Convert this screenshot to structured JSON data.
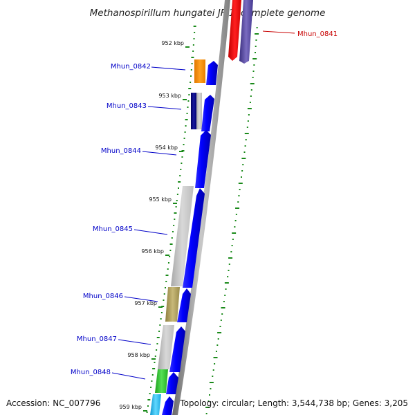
{
  "title": "Methanospirillum hungatei JF-1, complete genome",
  "footer": {
    "accession": "Accession: NC_007796",
    "topology": "Topology: circular; Length: 3,544,738 bp; Genes: 3,205"
  },
  "colors": {
    "reverse_gene": "#ee0000",
    "reverse_cds": "#5a4fa0",
    "forward_cds": "#0000ff",
    "backbone": "#999999",
    "gc_ticks": "#1a8a1a",
    "label_blue": "#0000c8",
    "label_red": "#c80000"
  },
  "ticks": [
    {
      "label": "952 kbp",
      "kbp": 952
    },
    {
      "label": "953 kbp",
      "kbp": 953
    },
    {
      "label": "954 kbp",
      "kbp": 954
    },
    {
      "label": "955 kbp",
      "kbp": 955
    },
    {
      "label": "956 kbp",
      "kbp": 956
    },
    {
      "label": "957 kbp",
      "kbp": 957
    },
    {
      "label": "958 kbp",
      "kbp": 958
    },
    {
      "label": "959 kbp",
      "kbp": 959
    }
  ],
  "genes": [
    {
      "name": "Mhun_0841",
      "strand": "reverse",
      "label_color": "red"
    },
    {
      "name": "Mhun_0842",
      "strand": "forward",
      "label_color": "blue",
      "color": "#f08c00"
    },
    {
      "name": "Mhun_0843",
      "strand": "forward",
      "label_color": "blue",
      "color": "#000080"
    },
    {
      "name": "Mhun_0844",
      "strand": "forward",
      "label_color": "blue",
      "color": null
    },
    {
      "name": "Mhun_0845",
      "strand": "forward",
      "label_color": "blue",
      "color": "#b8b8b8"
    },
    {
      "name": "Mhun_0846",
      "strand": "forward",
      "label_color": "blue",
      "color": "#a89a50"
    },
    {
      "name": "Mhun_0847",
      "strand": "forward",
      "label_color": "blue",
      "color": "#b8b8b8"
    },
    {
      "name": "Mhun_0848",
      "strand": "forward",
      "label_color": "blue",
      "color": "#33cc33"
    },
    {
      "name": "",
      "strand": "forward",
      "label_color": "blue",
      "color": "#22b8e8"
    }
  ]
}
